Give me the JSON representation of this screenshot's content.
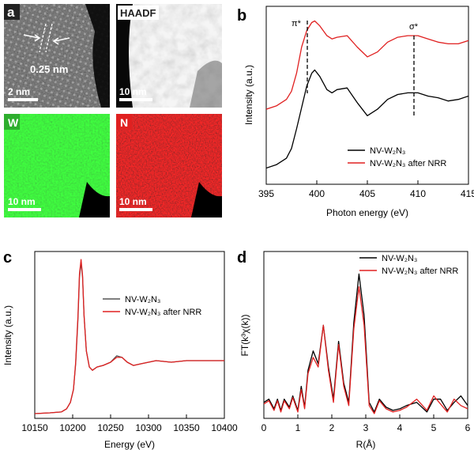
{
  "panels": {
    "a": {
      "label": "a",
      "tiles": [
        {
          "tag": "",
          "scalebar": "2 nm",
          "annotation": "0.25 nm"
        },
        {
          "tag": "HAADF",
          "scalebar": "10 nm"
        },
        {
          "tag": "W",
          "scalebar": "10 nm",
          "tag_color": "#2eae2e"
        },
        {
          "tag": "N",
          "scalebar": "10 nm",
          "tag_color": "#e02020"
        }
      ]
    },
    "b": {
      "label": "b",
      "peak_labels": [
        "π*",
        "σ*"
      ]
    },
    "c": {
      "label": "c"
    },
    "d": {
      "label": "d"
    }
  },
  "chart_data": [
    {
      "panel": "b",
      "type": "line",
      "xlabel": "Photon energy (eV)",
      "ylabel": "Intensity (a.u.)",
      "xlim": [
        395,
        415
      ],
      "xticks": [
        "395",
        "400",
        "405",
        "410",
        "415"
      ],
      "yticks_shown": false,
      "legend": "bottom-right",
      "colors": [
        "#000000",
        "#e02020"
      ],
      "series": [
        {
          "name": "NV-W₂N₃",
          "x": [
            395,
            396,
            397,
            397.5,
            398,
            398.5,
            399,
            399.5,
            399.8,
            400.3,
            401,
            401.5,
            402,
            403,
            404,
            405,
            406,
            407,
            408,
            409,
            410,
            411,
            412,
            413,
            414,
            415
          ],
          "y": [
            0.08,
            0.1,
            0.14,
            0.2,
            0.32,
            0.45,
            0.58,
            0.66,
            0.68,
            0.64,
            0.56,
            0.54,
            0.56,
            0.57,
            0.48,
            0.4,
            0.44,
            0.5,
            0.53,
            0.54,
            0.54,
            0.52,
            0.51,
            0.49,
            0.5,
            0.52
          ]
        },
        {
          "name": "NV-W₂N₃ after NRR",
          "x": [
            395,
            396,
            397,
            397.5,
            398,
            398.5,
            399,
            399.5,
            399.8,
            400.3,
            401,
            401.5,
            402,
            403,
            404,
            405,
            406,
            407,
            408,
            409,
            410,
            411,
            412,
            413,
            414,
            415
          ],
          "y": [
            0.44,
            0.46,
            0.5,
            0.55,
            0.66,
            0.82,
            0.92,
            0.97,
            0.98,
            0.95,
            0.89,
            0.87,
            0.88,
            0.89,
            0.82,
            0.76,
            0.79,
            0.85,
            0.88,
            0.89,
            0.89,
            0.87,
            0.85,
            0.84,
            0.84,
            0.86
          ]
        }
      ]
    },
    {
      "panel": "c",
      "type": "line",
      "xlabel": "Energy (eV)",
      "ylabel": "Intensity (a.u.)",
      "xlim": [
        10150,
        10400
      ],
      "xticks": [
        "10150",
        "10200",
        "10250",
        "10300",
        "10350",
        "10400"
      ],
      "yticks_shown": false,
      "legend": "center-right",
      "colors": [
        "#555555",
        "#e02020"
      ],
      "series": [
        {
          "name": "NV-W₂N₃",
          "x": [
            10150,
            10170,
            10185,
            10192,
            10197,
            10201,
            10204,
            10207,
            10209,
            10211,
            10213,
            10215,
            10218,
            10222,
            10226,
            10232,
            10240,
            10250,
            10258,
            10265,
            10272,
            10280,
            10290,
            10300,
            10310,
            10330,
            10350,
            10375,
            10400
          ],
          "y": [
            0.01,
            0.015,
            0.02,
            0.04,
            0.08,
            0.16,
            0.32,
            0.6,
            0.86,
            0.95,
            0.86,
            0.62,
            0.4,
            0.3,
            0.28,
            0.3,
            0.31,
            0.33,
            0.37,
            0.36,
            0.33,
            0.31,
            0.32,
            0.33,
            0.34,
            0.33,
            0.34,
            0.34,
            0.34
          ]
        },
        {
          "name": "NV-W₂N₃ after NRR",
          "x": [
            10150,
            10170,
            10185,
            10192,
            10197,
            10201,
            10204,
            10207,
            10209,
            10211,
            10213,
            10215,
            10218,
            10222,
            10226,
            10232,
            10240,
            10250,
            10258,
            10265,
            10272,
            10280,
            10290,
            10300,
            10310,
            10330,
            10350,
            10375,
            10400
          ],
          "y": [
            0.01,
            0.015,
            0.02,
            0.04,
            0.08,
            0.16,
            0.33,
            0.62,
            0.88,
            0.97,
            0.87,
            0.62,
            0.4,
            0.3,
            0.28,
            0.3,
            0.31,
            0.33,
            0.36,
            0.36,
            0.33,
            0.31,
            0.32,
            0.33,
            0.34,
            0.33,
            0.34,
            0.34,
            0.34
          ]
        }
      ]
    },
    {
      "panel": "d",
      "type": "line",
      "xlabel": "R(Å)",
      "ylabel": "FT(k³χ(k))",
      "xlim": [
        0,
        6
      ],
      "xticks": [
        "0",
        "1",
        "2",
        "3",
        "4",
        "5",
        "6"
      ],
      "yticks_shown": false,
      "legend": "top-right",
      "colors": [
        "#000000",
        "#e02020"
      ],
      "series": [
        {
          "name": "NV-W₂N₃",
          "x": [
            0,
            0.15,
            0.3,
            0.4,
            0.5,
            0.6,
            0.75,
            0.85,
            1.0,
            1.1,
            1.2,
            1.3,
            1.45,
            1.6,
            1.75,
            1.9,
            2.05,
            2.2,
            2.35,
            2.5,
            2.65,
            2.8,
            2.95,
            3.1,
            3.25,
            3.4,
            3.6,
            3.8,
            4.0,
            4.2,
            4.5,
            4.8,
            5.0,
            5.2,
            5.4,
            5.6,
            5.8,
            6.0
          ],
          "y": [
            0.08,
            0.1,
            0.04,
            0.1,
            0.03,
            0.1,
            0.05,
            0.12,
            0.03,
            0.18,
            0.05,
            0.28,
            0.4,
            0.32,
            0.56,
            0.3,
            0.1,
            0.46,
            0.2,
            0.08,
            0.58,
            0.88,
            0.62,
            0.08,
            0.02,
            0.1,
            0.05,
            0.03,
            0.04,
            0.06,
            0.08,
            0.02,
            0.1,
            0.1,
            0.03,
            0.08,
            0.12,
            0.06
          ]
        },
        {
          "name": "NV-W₂N₃ after NRR",
          "x": [
            0,
            0.15,
            0.3,
            0.4,
            0.5,
            0.6,
            0.75,
            0.85,
            1.0,
            1.1,
            1.2,
            1.3,
            1.45,
            1.6,
            1.75,
            1.9,
            2.05,
            2.2,
            2.35,
            2.5,
            2.65,
            2.8,
            2.95,
            3.1,
            3.25,
            3.4,
            3.6,
            3.8,
            4.0,
            4.2,
            4.5,
            4.8,
            5.0,
            5.2,
            5.4,
            5.6,
            5.8,
            6.0
          ],
          "y": [
            0.07,
            0.09,
            0.03,
            0.09,
            0.02,
            0.09,
            0.04,
            0.11,
            0.02,
            0.16,
            0.04,
            0.26,
            0.36,
            0.3,
            0.56,
            0.28,
            0.08,
            0.44,
            0.18,
            0.06,
            0.54,
            0.8,
            0.56,
            0.06,
            0.01,
            0.09,
            0.04,
            0.02,
            0.03,
            0.05,
            0.1,
            0.03,
            0.12,
            0.07,
            0.02,
            0.1,
            0.06,
            0.04
          ]
        }
      ]
    }
  ]
}
